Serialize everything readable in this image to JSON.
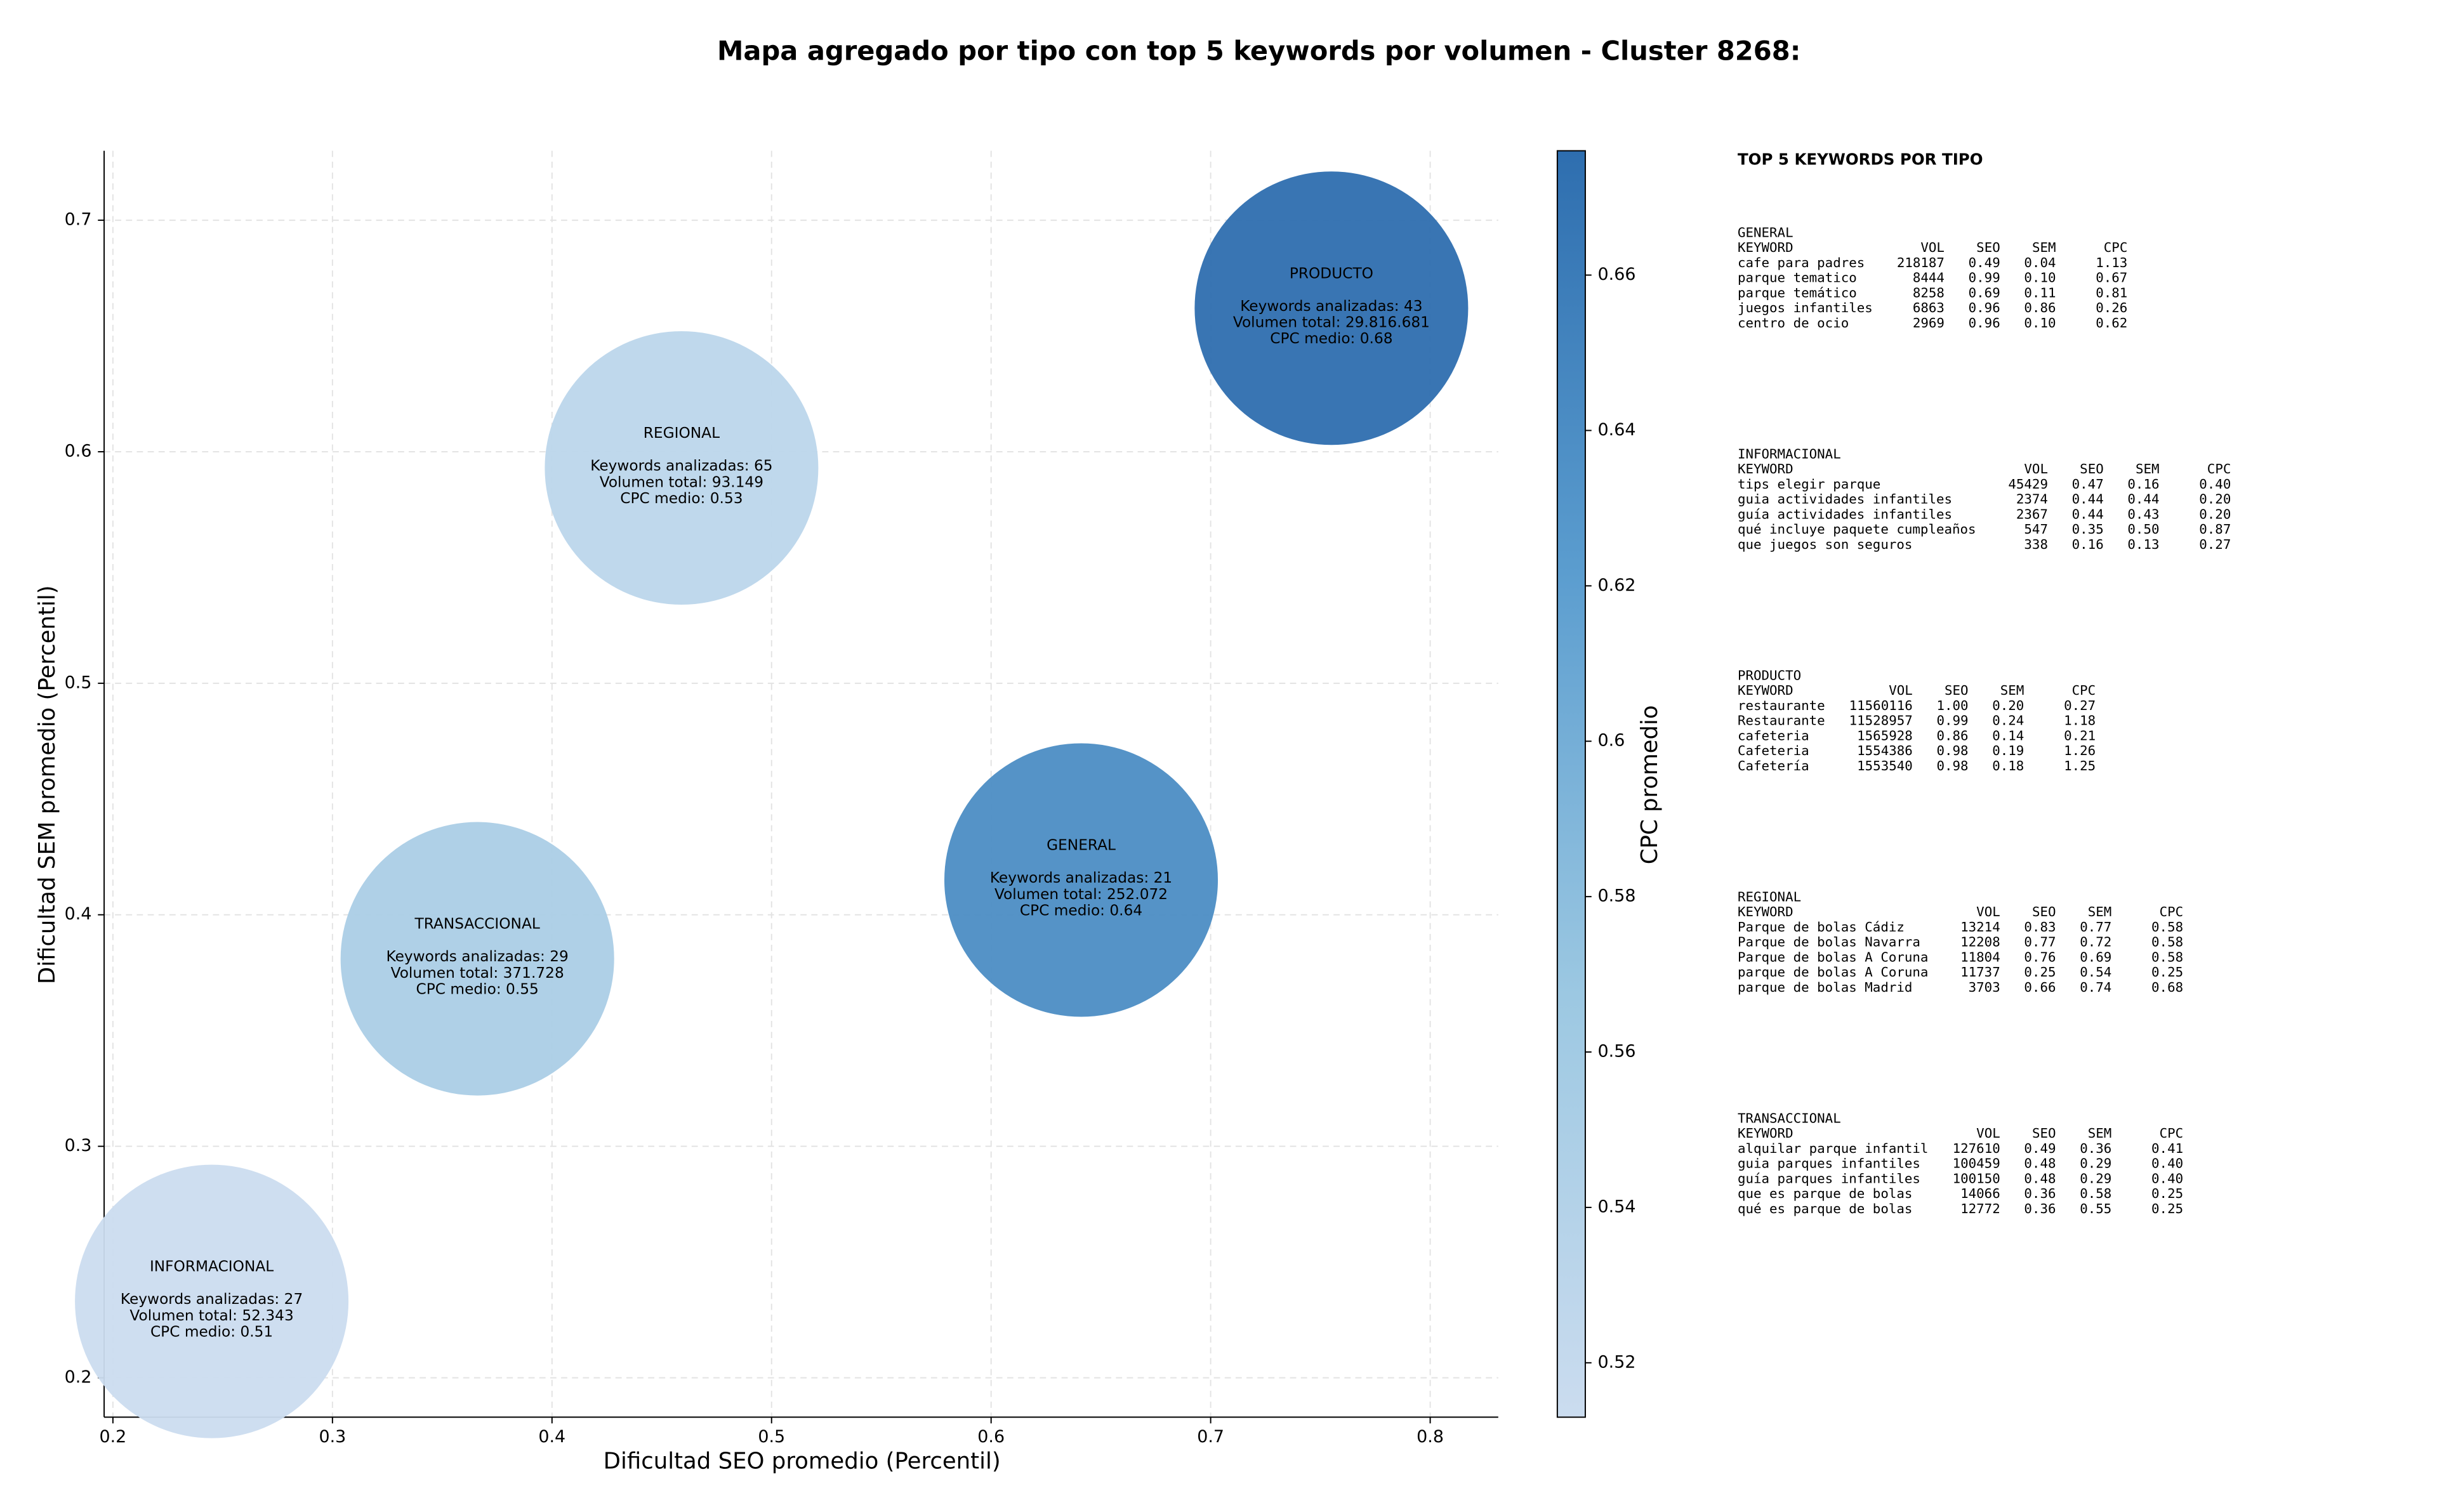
{
  "chart_data": {
    "type": "scatter",
    "title": "Mapa agregado por tipo con top 5 keywords por volumen - Cluster 8268:",
    "xlabel": "Dificultad SEO promedio (Percentil)",
    "ylabel": "Dificultad SEM promedio (Percentil)",
    "colorbar_label": "CPC promedio",
    "labels": [
      "PRODUCTO",
      "REGIONAL",
      "GENERAL",
      "TRANSACCIONAL",
      "INFORMACIONAL"
    ],
    "x": [
      0.755,
      0.459,
      0.641,
      0.366,
      0.245
    ],
    "values": [
      0.662,
      0.593,
      0.415,
      0.381,
      0.233
    ],
    "cpc": [
      0.68,
      0.53,
      0.64,
      0.55,
      0.51
    ],
    "annotations": [
      [
        "Keywords analizadas: 43",
        "Volumen total: 29.816.681",
        "CPC medio: 0.68"
      ],
      [
        "Keywords analizadas: 65",
        "Volumen total: 93.149",
        "CPC medio: 0.53"
      ],
      [
        "Keywords analizadas: 21",
        "Volumen total: 252.072",
        "CPC medio: 0.64"
      ],
      [
        "Keywords analizadas: 29",
        "Volumen total: 371.728",
        "CPC medio: 0.55"
      ],
      [
        "Keywords analizadas: 27",
        "Volumen total: 52.343",
        "CPC medio: 0.51"
      ]
    ],
    "xlim": [
      0.196,
      0.831
    ],
    "ylim": [
      0.183,
      0.73
    ],
    "xticks": [
      0.2,
      0.3,
      0.4,
      0.5,
      0.6,
      0.7,
      0.8
    ],
    "yticks": [
      0.2,
      0.3,
      0.4,
      0.5,
      0.6,
      0.7
    ],
    "clim": [
      0.513,
      0.676
    ],
    "cticks": [
      0.52,
      0.54,
      0.56,
      0.58,
      0.6,
      0.62,
      0.64,
      0.66
    ],
    "colormap": [
      "#cbdcef",
      "#9cc8e2",
      "#5b9dcf",
      "#2e6eaf"
    ],
    "grid": true,
    "side_panel": {
      "title": "TOP 5 KEYWORDS POR TIPO",
      "tables": [
        {
          "name": "GENERAL",
          "header": [
            "KEYWORD",
            "VOL",
            "SEO",
            "SEM",
            "CPC"
          ],
          "rows": [
            [
              "cafe para padres",
              "218187",
              "0.49",
              "0.04",
              "1.13"
            ],
            [
              "parque tematico",
              "8444",
              "0.99",
              "0.10",
              "0.67"
            ],
            [
              "parque temático",
              "8258",
              "0.69",
              "0.11",
              "0.81"
            ],
            [
              "juegos infantiles",
              "6863",
              "0.96",
              "0.86",
              "0.26"
            ],
            [
              "centro de ocio",
              "2969",
              "0.96",
              "0.10",
              "0.62"
            ]
          ]
        },
        {
          "name": "INFORMACIONAL",
          "header": [
            "KEYWORD",
            "VOL",
            "SEO",
            "SEM",
            "CPC"
          ],
          "rows": [
            [
              "tips elegir parque",
              "45429",
              "0.47",
              "0.16",
              "0.40"
            ],
            [
              "guia actividades infantiles",
              "2374",
              "0.44",
              "0.44",
              "0.20"
            ],
            [
              "guía actividades infantiles",
              "2367",
              "0.44",
              "0.43",
              "0.20"
            ],
            [
              "qué incluye paquete cumpleaños",
              "547",
              "0.35",
              "0.50",
              "0.87"
            ],
            [
              "que juegos son seguros",
              "338",
              "0.16",
              "0.13",
              "0.27"
            ]
          ]
        },
        {
          "name": "PRODUCTO",
          "header": [
            "KEYWORD",
            "VOL",
            "SEO",
            "SEM",
            "CPC"
          ],
          "rows": [
            [
              "restaurante",
              "11560116",
              "1.00",
              "0.20",
              "0.27"
            ],
            [
              "Restaurante",
              "11528957",
              "0.99",
              "0.24",
              "1.18"
            ],
            [
              "cafeteria",
              "1565928",
              "0.86",
              "0.14",
              "0.21"
            ],
            [
              "Cafeteria",
              "1554386",
              "0.98",
              "0.19",
              "1.26"
            ],
            [
              "Cafetería",
              "1553540",
              "0.98",
              "0.18",
              "1.25"
            ]
          ]
        },
        {
          "name": "REGIONAL",
          "header": [
            "KEYWORD",
            "VOL",
            "SEO",
            "SEM",
            "CPC"
          ],
          "rows": [
            [
              "Parque de bolas Cádiz",
              "13214",
              "0.83",
              "0.77",
              "0.58"
            ],
            [
              "Parque de bolas Navarra",
              "12208",
              "0.77",
              "0.72",
              "0.58"
            ],
            [
              "Parque de bolas A Coruna",
              "11804",
              "0.76",
              "0.69",
              "0.58"
            ],
            [
              "parque de bolas A Coruna",
              "11737",
              "0.25",
              "0.54",
              "0.25"
            ],
            [
              "parque de bolas Madrid",
              "3703",
              "0.66",
              "0.74",
              "0.68"
            ]
          ]
        },
        {
          "name": "TRANSACCIONAL",
          "header": [
            "KEYWORD",
            "VOL",
            "SEO",
            "SEM",
            "CPC"
          ],
          "rows": [
            [
              "alquilar parque infantil",
              "127610",
              "0.49",
              "0.36",
              "0.41"
            ],
            [
              "guia parques infantiles",
              "100459",
              "0.48",
              "0.29",
              "0.40"
            ],
            [
              "guía parques infantiles",
              "100150",
              "0.48",
              "0.29",
              "0.40"
            ],
            [
              "que es parque de bolas",
              "14066",
              "0.36",
              "0.58",
              "0.25"
            ],
            [
              "qué es parque de bolas",
              "12772",
              "0.36",
              "0.55",
              "0.25"
            ]
          ]
        }
      ]
    }
  }
}
